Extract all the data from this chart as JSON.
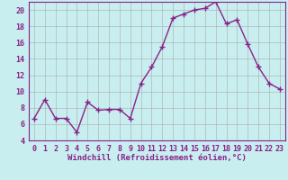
{
  "x": [
    0,
    1,
    2,
    3,
    4,
    5,
    6,
    7,
    8,
    9,
    10,
    11,
    12,
    13,
    14,
    15,
    16,
    17,
    18,
    19,
    20,
    21,
    22,
    23
  ],
  "y": [
    6.7,
    9.0,
    6.7,
    6.7,
    5.0,
    8.7,
    7.7,
    7.8,
    7.8,
    6.7,
    11.0,
    13.0,
    15.5,
    19.0,
    19.5,
    20.0,
    20.2,
    21.0,
    18.3,
    18.8,
    15.8,
    13.0,
    11.0,
    10.3
  ],
  "line_color": "#882288",
  "marker": "+",
  "marker_size": 4,
  "bg_color": "#c8eef0",
  "grid_color": "#aaaaaa",
  "xlabel": "Windchill (Refroidissement éolien,°C)",
  "ylim": [
    4,
    21
  ],
  "xlim": [
    -0.5,
    23.5
  ],
  "yticks": [
    4,
    6,
    8,
    10,
    12,
    14,
    16,
    18,
    20
  ],
  "xticks": [
    0,
    1,
    2,
    3,
    4,
    5,
    6,
    7,
    8,
    9,
    10,
    11,
    12,
    13,
    14,
    15,
    16,
    17,
    18,
    19,
    20,
    21,
    22,
    23
  ],
  "line_width": 1.0,
  "xlabel_fontsize": 6.5,
  "tick_fontsize": 6.0,
  "axis_color": "#882288",
  "marker_color": "#882288"
}
